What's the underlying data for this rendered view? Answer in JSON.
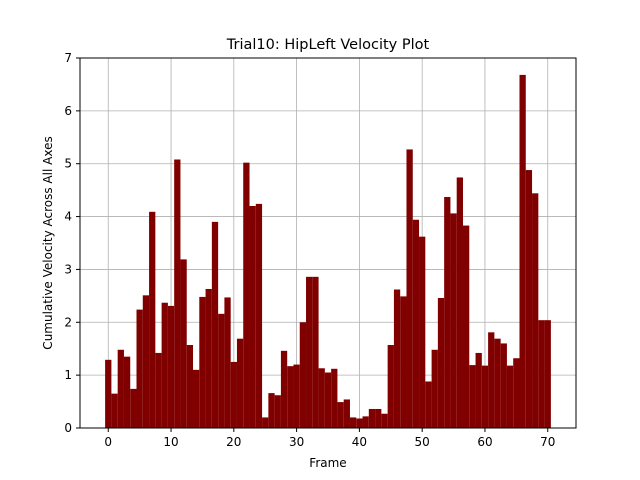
{
  "chart_data": {
    "type": "bar",
    "title": "Trial10: HipLeft Velocity Plot",
    "xlabel": "Frame",
    "ylabel": "Cumulative Velocity Across All Axes",
    "xlim": [
      -4.5,
      74.5
    ],
    "ylim": [
      0,
      7
    ],
    "xticks": [
      0,
      10,
      20,
      30,
      40,
      50,
      60,
      70
    ],
    "yticks": [
      0,
      1,
      2,
      3,
      4,
      5,
      6,
      7
    ],
    "grid": true,
    "bar_color": "#800000",
    "x": [
      0,
      1,
      2,
      3,
      4,
      5,
      6,
      7,
      8,
      9,
      10,
      11,
      12,
      13,
      14,
      15,
      16,
      17,
      18,
      19,
      20,
      21,
      22,
      23,
      24,
      25,
      26,
      27,
      28,
      29,
      30,
      31,
      32,
      33,
      34,
      35,
      36,
      37,
      38,
      39,
      40,
      41,
      42,
      43,
      44,
      45,
      46,
      47,
      48,
      49,
      50,
      51,
      52,
      53,
      54,
      55,
      56,
      57,
      58,
      59,
      60,
      61,
      62,
      63,
      64,
      65,
      66,
      67,
      68,
      69,
      70
    ],
    "values": [
      1.29,
      0.65,
      1.48,
      1.35,
      0.74,
      2.24,
      2.51,
      4.09,
      1.42,
      2.37,
      2.31,
      5.08,
      3.19,
      1.57,
      1.1,
      2.48,
      2.63,
      3.9,
      2.16,
      2.47,
      1.25,
      1.69,
      5.02,
      4.2,
      4.24,
      0.2,
      0.66,
      0.62,
      1.46,
      1.17,
      1.2,
      2.0,
      2.86,
      2.86,
      1.13,
      1.05,
      1.12,
      0.49,
      0.54,
      0.2,
      0.18,
      0.22,
      0.36,
      0.36,
      0.27,
      1.57,
      2.62,
      2.49,
      5.27,
      3.94,
      3.62,
      0.88,
      1.48,
      2.46,
      4.37,
      4.06,
      4.74,
      3.83,
      1.19,
      1.42,
      1.18,
      1.81,
      1.69,
      1.6,
      1.18,
      1.32,
      6.68,
      4.88,
      4.44,
      2.04,
      2.04
    ]
  }
}
